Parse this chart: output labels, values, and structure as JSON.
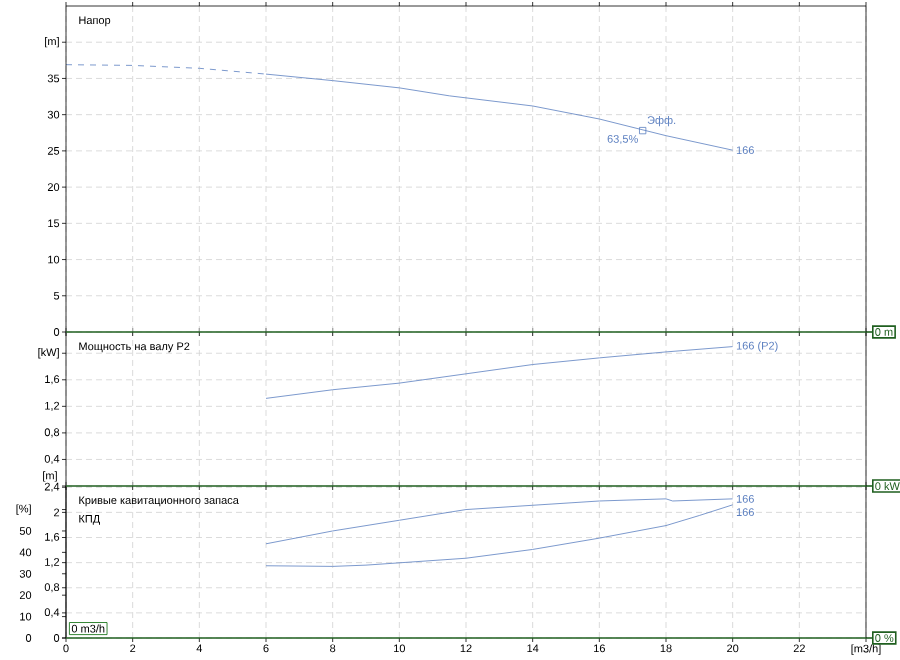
{
  "chart_data": [
    {
      "type": "line",
      "title": "Напор",
      "xlim": [
        0,
        24
      ],
      "ylim": [
        0,
        45
      ],
      "xticks": [
        0,
        2,
        4,
        6,
        8,
        10,
        12,
        14,
        16,
        18,
        20,
        22,
        24
      ],
      "yticks": [
        0,
        5,
        10,
        15,
        20,
        25,
        30,
        35,
        {
          "value": 40,
          "label": "[m]"
        }
      ],
      "grid": true,
      "tick_labels": "y",
      "series": [
        {
          "color": "#5b7fc0",
          "line_style": "dashed",
          "x": [
            0,
            2,
            4,
            6
          ],
          "values": [
            36.9,
            36.8,
            36.4,
            35.6
          ]
        },
        {
          "name": "166",
          "color": "#5b7fc0",
          "line_style": "solid",
          "x": [
            6,
            8,
            10,
            11.5,
            14,
            16,
            18,
            20
          ],
          "values": [
            35.6,
            34.7,
            33.7,
            32.6,
            31.2,
            29.4,
            27.1,
            25.1
          ]
        },
        {
          "type": "scatter",
          "marker": "square",
          "color": "#5b7fc0",
          "x": [
            17.3
          ],
          "values": [
            27.8
          ]
        }
      ],
      "annotations": [
        {
          "text": "Эфф.",
          "x": 17.3,
          "y": 27.8
        },
        {
          "text": "63,5%",
          "x": 17.3,
          "y": 27.8
        },
        "0 m"
      ]
    },
    {
      "type": "line",
      "title": "Мощность на валу P2",
      "xlim": [
        0,
        24
      ],
      "ylim": [
        0,
        2.32
      ],
      "xticks": [
        0,
        2,
        4,
        6,
        8,
        10,
        12,
        14,
        16,
        18,
        20,
        22,
        24
      ],
      "yticks": [
        {
          "value": 0,
          "label": null
        },
        {
          "value": 0.4,
          "label": "0,4"
        },
        {
          "value": 0.8,
          "label": "0,8"
        },
        {
          "value": 1.2,
          "label": "1,2"
        },
        {
          "value": 1.6,
          "label": "1,6"
        },
        {
          "value": 2.0,
          "label": "[kW]"
        }
      ],
      "grid": true,
      "tick_labels": "y",
      "series": [
        {
          "name": "166 (P2)",
          "color": "#5b7fc0",
          "x": [
            6,
            8,
            10,
            12,
            14,
            16,
            18,
            20
          ],
          "values": [
            1.32,
            1.45,
            1.55,
            1.69,
            1.83,
            1.93,
            2.02,
            2.1
          ]
        }
      ],
      "annotations": [
        "0 kW"
      ]
    },
    {
      "type": "line",
      "title": "Кривые кавитационного запаса",
      "subtitle": "КПД",
      "ylabel": "[m]",
      "xlim": [
        0,
        24
      ],
      "ylim": [
        0,
        2.42
      ],
      "y2lim": [
        0,
        71
      ],
      "xticks": [
        0,
        2,
        4,
        6,
        8,
        10,
        12,
        14,
        16,
        18,
        20,
        22,
        {
          "value": 24,
          "label": "[m3/h]"
        }
      ],
      "yticks": [
        0,
        {
          "value": 0.4,
          "label": "0,4"
        },
        {
          "value": 0.8,
          "label": "0,8"
        },
        {
          "value": 1.2,
          "label": "1,2"
        },
        {
          "value": 1.6,
          "label": "1,6"
        },
        2,
        {
          "value": 2.4,
          "label": "2,4"
        }
      ],
      "y2ticks": [
        0,
        10,
        20,
        30,
        40,
        50,
        {
          "value": 60,
          "label": "[%]"
        }
      ],
      "grid": true,
      "series": [
        {
          "name": "166",
          "color": "#5b7fc0",
          "axis": "y2",
          "x": [
            6,
            8,
            10,
            12,
            14,
            16,
            18,
            18.2,
            20
          ],
          "values": [
            44,
            50,
            55,
            60,
            62,
            64,
            65,
            64,
            65
          ]
        },
        {
          "name": "166",
          "color": "#5b7fc0",
          "x": [
            6,
            8,
            9,
            12,
            14,
            16,
            18,
            19,
            20
          ],
          "values": [
            1.15,
            1.14,
            1.16,
            1.27,
            1.41,
            1.59,
            1.79,
            1.95,
            2.12
          ]
        }
      ],
      "annotations": [
        "0 m3/h",
        "0 %"
      ]
    }
  ]
}
